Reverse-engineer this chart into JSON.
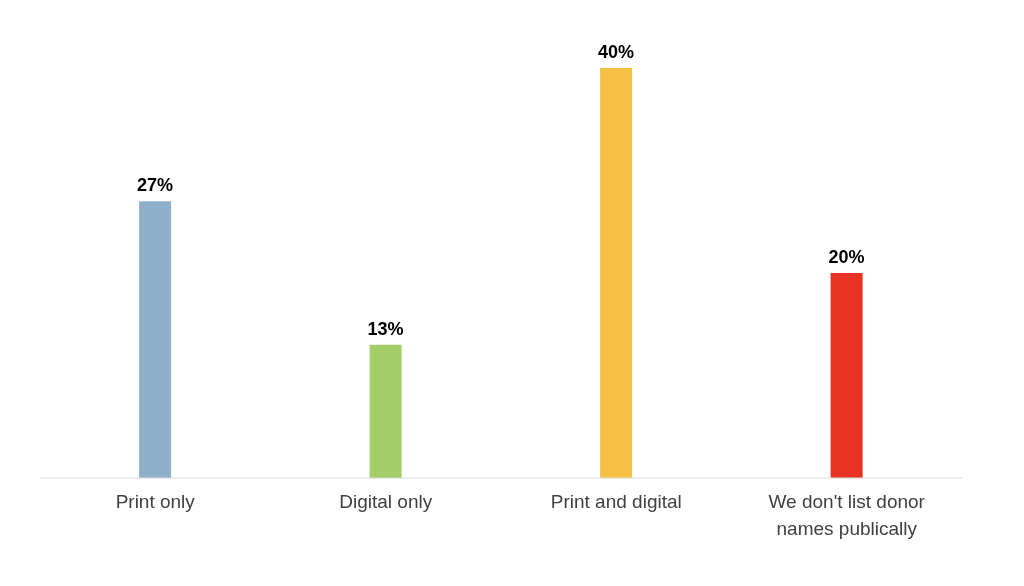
{
  "chart_data": {
    "type": "bar",
    "categories": [
      "Print only",
      "Digital only",
      "Print and digital",
      "We don't list donor names publically"
    ],
    "values": [
      27,
      13,
      40,
      20
    ],
    "colors": [
      "#8fb0cb",
      "#a2cd67",
      "#f5c043",
      "#e83323"
    ],
    "value_labels": [
      "27%",
      "13%",
      "40%",
      "20%"
    ]
  }
}
